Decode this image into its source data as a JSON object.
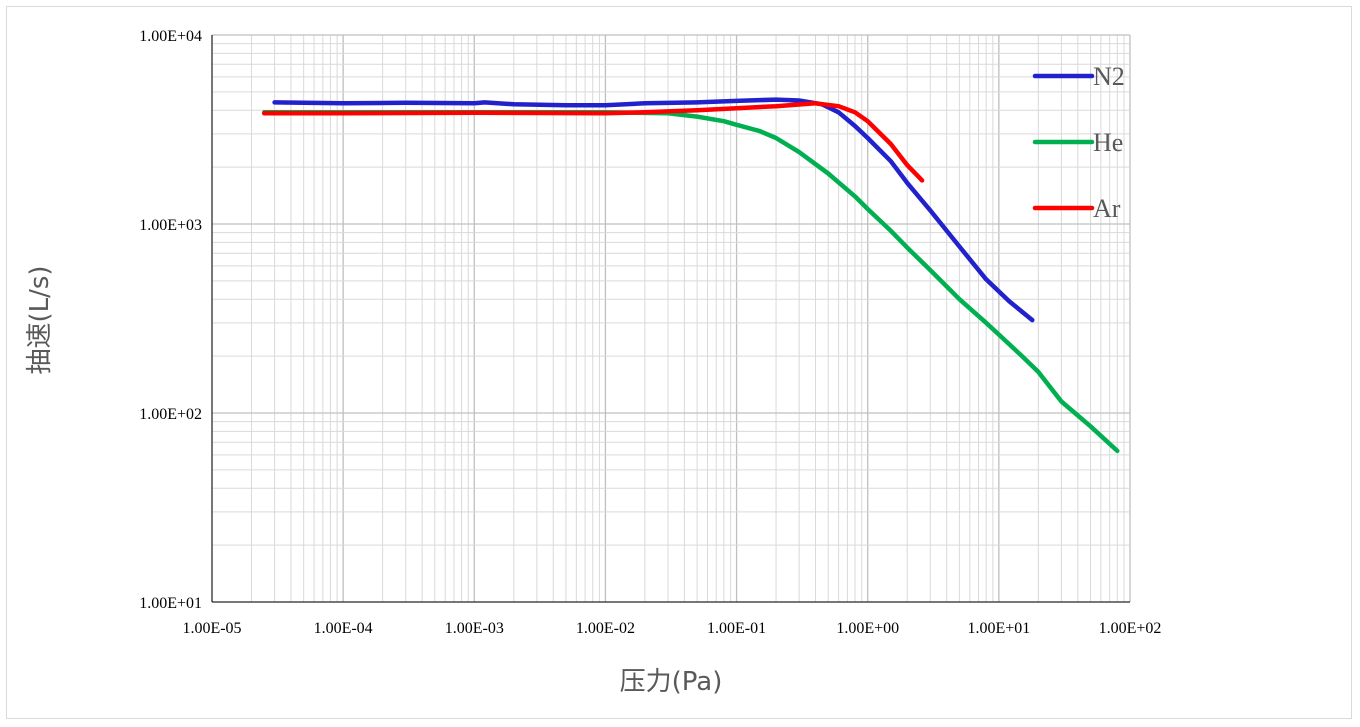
{
  "chart_data": {
    "type": "line",
    "xscale": "log",
    "yscale": "log",
    "xlim": [
      1e-05,
      100
    ],
    "ylim": [
      10,
      10000
    ],
    "xlabel": "压力(Pa)",
    "ylabel": "抽速(L/s)",
    "grid": true,
    "legend_position": "top-right",
    "x_tick_labels": [
      "1.00E-05",
      "1.00E-04",
      "1.00E-03",
      "1.00E-02",
      "1.00E-01",
      "1.00E+00",
      "1.00E+01",
      "1.00E+02"
    ],
    "y_tick_labels": [
      "1.00E+01",
      "1.00E+02",
      "1.00E+03",
      "1.00E+04"
    ],
    "series": [
      {
        "name": "N2",
        "color": "#2222cc",
        "x": [
          3e-05,
          0.0001,
          0.0003,
          0.001,
          0.0012,
          0.002,
          0.005,
          0.01,
          0.02,
          0.05,
          0.1,
          0.2,
          0.3,
          0.45,
          0.6,
          0.8,
          1.0,
          1.5,
          2.0,
          3.0,
          5.0,
          8.0,
          12.0,
          18.0
        ],
        "y": [
          4400,
          4350,
          4380,
          4350,
          4400,
          4300,
          4250,
          4250,
          4350,
          4400,
          4480,
          4550,
          4500,
          4300,
          3900,
          3300,
          2850,
          2150,
          1650,
          1180,
          760,
          510,
          390,
          310
        ]
      },
      {
        "name": "He",
        "color": "#00b050",
        "x": [
          2.5e-05,
          0.0001,
          0.001,
          0.01,
          0.03,
          0.05,
          0.08,
          0.1,
          0.15,
          0.2,
          0.3,
          0.5,
          0.8,
          1.0,
          1.5,
          2.0,
          3.0,
          5.0,
          8.0,
          10.0,
          15.0,
          20.0,
          30.0,
          50.0,
          80.0
        ],
        "y": [
          3900,
          3900,
          3900,
          3900,
          3850,
          3700,
          3500,
          3350,
          3100,
          2850,
          2400,
          1850,
          1400,
          1200,
          920,
          750,
          570,
          400,
          300,
          260,
          200,
          165,
          115,
          85,
          63
        ]
      },
      {
        "name": "Ar",
        "color": "#ff0000",
        "x": [
          2.5e-05,
          0.0001,
          0.001,
          0.01,
          0.02,
          0.05,
          0.1,
          0.2,
          0.4,
          0.6,
          0.8,
          1.0,
          1.5,
          2.0,
          2.6
        ],
        "y": [
          3850,
          3850,
          3880,
          3850,
          3900,
          4000,
          4100,
          4200,
          4350,
          4200,
          3900,
          3500,
          2650,
          2050,
          1700
        ]
      }
    ]
  }
}
